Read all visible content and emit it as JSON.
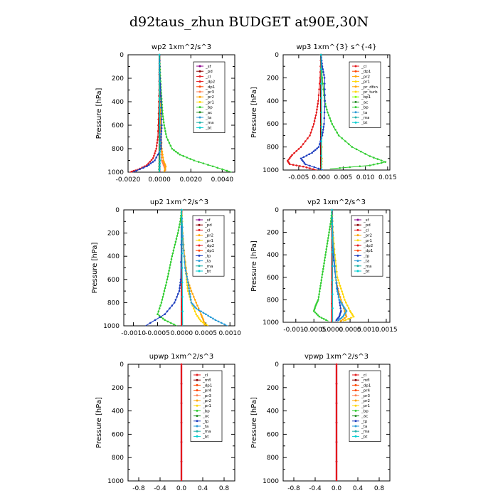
{
  "page": {
    "title": "d92taus_zhun  BUDGET at90E,30N"
  },
  "chart_data": [
    {
      "type": "line",
      "title": "wp2  1xm^2/s^3",
      "ylabel": "Pressure [hPa]",
      "ylim": [
        1000,
        0
      ],
      "xlim": [
        -0.002,
        0.0048
      ],
      "xticks": [
        "-0.0020",
        "0.0000",
        "0.0020",
        "0.0040"
      ],
      "xtick_values": [
        -0.002,
        0.0,
        0.002,
        0.004
      ],
      "yticks": [
        "0",
        "200",
        "400",
        "600",
        "800",
        "1000"
      ],
      "legend": [
        "_sf",
        "_pd",
        "_cl",
        "_dp2",
        "_dp1",
        "_pr3",
        "_pr2",
        "_pr1",
        "_bp",
        "_ac",
        "_ta",
        "_ma",
        "_bt"
      ],
      "series": [
        {
          "name": "_sf",
          "color": "#8B008B",
          "p": [
            0,
            1000
          ],
          "x": [
            0,
            0
          ]
        },
        {
          "name": "_pd",
          "color": "#8B0000",
          "p": [
            0,
            1000
          ],
          "x": [
            0,
            0
          ]
        },
        {
          "name": "_cl",
          "color": "#e41a1c",
          "p": [
            0,
            300,
            500,
            700,
            800,
            880,
            940,
            980,
            1000
          ],
          "x": [
            0,
            -2e-05,
            -5e-05,
            -0.0001,
            -0.0002,
            -0.0004,
            -0.0008,
            -0.0014,
            -0.0019
          ]
        },
        {
          "name": "_dp1",
          "color": "#ff7f50",
          "p": [
            0,
            300,
            600,
            800,
            900,
            950,
            990
          ],
          "x": [
            0,
            2e-05,
            5e-05,
            0.0001,
            0.00015,
            0.0003,
            0.0004
          ]
        },
        {
          "name": "_pr3",
          "color": "#ffa500",
          "p": [
            0,
            300,
            600,
            800,
            900,
            950,
            1000
          ],
          "x": [
            0,
            3e-05,
            8e-05,
            0.00015,
            0.00025,
            0.0004,
            0.0003
          ]
        },
        {
          "name": "_bp",
          "color": "#32cd32",
          "p": [
            0,
            100,
            200,
            300,
            400,
            500,
            600,
            700,
            800,
            850,
            900,
            950,
            1000
          ],
          "x": [
            0,
            3e-05,
            6e-05,
            0.0001,
            0.00015,
            0.0002,
            0.0003,
            0.00045,
            0.0008,
            0.0013,
            0.0022,
            0.0034,
            0.0046
          ]
        },
        {
          "name": "_ac",
          "color": "#228b22",
          "p": [
            0,
            500,
            900,
            1000
          ],
          "x": [
            0,
            0,
            0,
            -3e-05
          ]
        },
        {
          "name": "_ta",
          "color": "#1f3fbf",
          "p": [
            0,
            200,
            400,
            600,
            700,
            800,
            900,
            950,
            1000
          ],
          "x": [
            0,
            3e-05,
            0.0001,
            0.00015,
            0.0001,
            0.0001,
            -0.0003,
            -0.0008,
            -0.0017
          ]
        },
        {
          "name": "_bt",
          "color": "#00ced1",
          "p": [
            0,
            300,
            600,
            900,
            1000
          ],
          "x": [
            0,
            1e-05,
            2e-05,
            4e-05,
            1e-05
          ]
        }
      ]
    },
    {
      "type": "line",
      "title": "wp3  1xm^{3} s^{-4}",
      "ylabel": "Pressure [hPa]",
      "ylim": [
        1000,
        0
      ],
      "xlim": [
        -0.0085,
        0.0155
      ],
      "xticks": [
        "-0.005",
        "0.000",
        "0.005",
        "0.010",
        "0.015"
      ],
      "xtick_values": [
        -0.005,
        0.0,
        0.005,
        0.01,
        0.015
      ],
      "yticks": [
        "0",
        "200",
        "400",
        "600",
        "800",
        "1000"
      ],
      "legend": [
        "_cl",
        "_dp1",
        "_pr2",
        "_pr1",
        "_pr_dfsn",
        "_pr_turb",
        "_bp1",
        "_ac",
        "_bp",
        "_ta",
        "_ma",
        "_bt"
      ],
      "series": [
        {
          "name": "_cl",
          "color": "#8B008B",
          "p": [
            0,
            1000
          ],
          "x": [
            0,
            0
          ]
        },
        {
          "name": "_dp1",
          "color": "#8B0000",
          "p": [
            0,
            1000
          ],
          "x": [
            0,
            0
          ]
        },
        {
          "name": "_pr2",
          "color": "#e41a1c",
          "p": [
            0,
            200,
            400,
            500,
            600,
            700,
            800,
            870,
            920,
            950,
            970,
            1000
          ],
          "x": [
            0,
            -0.0002,
            -0.0006,
            -0.001,
            -0.0016,
            -0.0025,
            -0.0045,
            -0.0065,
            -0.0075,
            -0.007,
            -0.004,
            -0.001
          ]
        },
        {
          "name": "_pr_dfsn",
          "color": "#ffa500",
          "p": [
            0,
            500,
            900,
            1000
          ],
          "x": [
            0,
            0.0001,
            0.0002,
            0.0001
          ]
        },
        {
          "name": "_ac",
          "color": "#32cd32",
          "p": [
            0,
            200,
            400,
            500,
            600,
            700,
            800,
            880,
            930,
            960,
            990
          ],
          "x": [
            0,
            0.0003,
            0.0008,
            0.0015,
            0.0025,
            0.004,
            0.007,
            0.011,
            0.0145,
            0.011,
            0.002
          ]
        },
        {
          "name": "_ta",
          "color": "#1f3fbf",
          "p": [
            0,
            100,
            200,
            400,
            600,
            700,
            800,
            850,
            900,
            950,
            1000
          ],
          "x": [
            0,
            0.0003,
            0.0008,
            0.0009,
            0.0007,
            0.0003,
            -0.0005,
            -0.002,
            -0.0045,
            -0.0035,
            0.0005
          ]
        },
        {
          "name": "_bt",
          "color": "#00ced1",
          "p": [
            0,
            500,
            1000
          ],
          "x": [
            0,
            0.0001,
            0.0001
          ]
        }
      ]
    },
    {
      "type": "line",
      "title": "up2  1xm^2/s^3",
      "ylabel": "Pressure [hPa]",
      "ylim": [
        1000,
        0
      ],
      "xlim": [
        -0.0012,
        0.0011
      ],
      "xticks": [
        "-0.0010",
        "-0.0005",
        "0.0000",
        "0.0005",
        "0.0010"
      ],
      "xtick_values": [
        -0.001,
        -0.0005,
        0.0,
        0.0005,
        0.001
      ],
      "yticks": [
        "0",
        "200",
        "400",
        "600",
        "800",
        "1000"
      ],
      "legend": [
        "_sf",
        "_pd",
        "_cl",
        "_pr2",
        "_pr1",
        "_dp2",
        "_dp1",
        "_tp",
        "_ta",
        "_ma",
        "_bt"
      ],
      "series": [
        {
          "name": "_sf",
          "color": "#8B008B",
          "p": [
            0,
            1000
          ],
          "x": [
            0,
            0
          ]
        },
        {
          "name": "_pd",
          "color": "#8B0000",
          "p": [
            0,
            1000
          ],
          "x": [
            0,
            0
          ]
        },
        {
          "name": "_cl",
          "color": "#e41a1c",
          "p": [
            0,
            1000
          ],
          "x": [
            0,
            0
          ]
        },
        {
          "name": "_pr2",
          "color": "#ffa500",
          "p": [
            0,
            200,
            400,
            600,
            700,
            800,
            900,
            950,
            1000
          ],
          "x": [
            0,
            2e-05,
            6e-05,
            0.00012,
            0.0002,
            0.0003,
            0.0004,
            0.00045,
            0.00048
          ]
        },
        {
          "name": "_pr1",
          "color": "#ffd700",
          "p": [
            0,
            200,
            400,
            600,
            700,
            800,
            900,
            960,
            1000
          ],
          "x": [
            0,
            2e-05,
            5e-05,
            0.0001,
            0.00013,
            0.0002,
            0.0003,
            0.0004,
            0.00055
          ]
        },
        {
          "name": "_dp1",
          "color": "#32cd32",
          "p": [
            0,
            100,
            200,
            300,
            400,
            500,
            600,
            700,
            800,
            900,
            950,
            1000
          ],
          "x": [
            0,
            -3e-05,
            -8e-05,
            -0.00014,
            -0.0002,
            -0.00025,
            -0.0003,
            -0.00036,
            -0.00042,
            -0.0005,
            -0.00035,
            -0.0001
          ]
        },
        {
          "name": "_tp",
          "color": "#1f3fbf",
          "p": [
            0,
            600,
            700,
            800,
            900,
            1000
          ],
          "x": [
            0,
            -2e-05,
            -5e-05,
            -0.00015,
            -0.00035,
            -0.00075
          ]
        },
        {
          "name": "_ta",
          "color": "#2a9bd6",
          "p": [
            0,
            300,
            500,
            600,
            700,
            800,
            850,
            900,
            950,
            1000
          ],
          "x": [
            0,
            3e-05,
            7e-05,
            0.00012,
            0.00016,
            0.0002,
            0.0003,
            0.0005,
            0.0007,
            0.00095
          ]
        },
        {
          "name": "_bt",
          "color": "#00ced1",
          "p": [
            0,
            500,
            1000
          ],
          "x": [
            0,
            1e-05,
            2e-05
          ]
        }
      ]
    },
    {
      "type": "line",
      "title": "vp2  1xm^2/s^3",
      "ylabel": "Pressure [hPa]",
      "ylim": [
        1000,
        0
      ],
      "xlim": [
        -0.00135,
        0.0016
      ],
      "xticks": [
        "-0.0010",
        "-0.0005",
        "0.0000",
        "0.0005",
        "0.0010",
        "0.0015"
      ],
      "xtick_values": [
        -0.001,
        -0.0005,
        0.0,
        0.0005,
        0.001,
        0.0015
      ],
      "yticks": [
        "0",
        "200",
        "400",
        "600",
        "800",
        "1000"
      ],
      "legend": [
        "_sf",
        "_pd",
        "_cl",
        "_pr2",
        "_pr1",
        "_dp2",
        "_dp1",
        "_tp",
        "_ta",
        "_ma",
        "_bt"
      ],
      "series": [
        {
          "name": "_sf",
          "color": "#8B008B",
          "p": [
            0,
            1000
          ],
          "x": [
            0,
            0
          ]
        },
        {
          "name": "_pd",
          "color": "#8B0000",
          "p": [
            0,
            1000
          ],
          "x": [
            0,
            0
          ]
        },
        {
          "name": "_cl",
          "color": "#e41a1c",
          "p": [
            0,
            1000
          ],
          "x": [
            0,
            0
          ]
        },
        {
          "name": "_pr2",
          "color": "#ffa500",
          "p": [
            0,
            200,
            400,
            600,
            700,
            800,
            900,
            950,
            1000
          ],
          "x": [
            0,
            2e-05,
            5e-05,
            0.0001,
            0.00016,
            0.00025,
            0.00035,
            0.0004,
            0.0002
          ]
        },
        {
          "name": "_pr1",
          "color": "#ffd700",
          "p": [
            0,
            200,
            400,
            600,
            700,
            800,
            900,
            950,
            990
          ],
          "x": [
            0,
            3e-05,
            8e-05,
            0.00015,
            0.00025,
            0.00035,
            0.0005,
            0.0006,
            0.0003
          ]
        },
        {
          "name": "_dp1",
          "color": "#32cd32",
          "p": [
            0,
            100,
            200,
            300,
            400,
            500,
            600,
            700,
            800,
            850,
            900,
            950,
            990
          ],
          "x": [
            0,
            -3e-05,
            -8e-05,
            -0.00013,
            -0.00018,
            -0.00023,
            -0.00028,
            -0.00033,
            -0.00038,
            -0.00045,
            -0.0005,
            -0.00035,
            -0.0001
          ]
        },
        {
          "name": "_tp",
          "color": "#1f3fbf",
          "p": [
            0,
            400,
            600,
            800,
            900,
            950,
            990
          ],
          "x": [
            0,
            3e-05,
            0.0001,
            0.0002,
            0.00025,
            0.0002,
            0.0001
          ]
        },
        {
          "name": "_ta",
          "color": "#2a9bd6",
          "p": [
            0,
            300,
            500,
            700,
            800,
            850,
            900,
            950,
            990
          ],
          "x": [
            0,
            3e-05,
            8e-05,
            0.00013,
            0.0002,
            0.0003,
            0.0004,
            0.0003,
            0.00015
          ]
        },
        {
          "name": "_bt",
          "color": "#00ced1",
          "p": [
            0,
            500,
            1000
          ],
          "x": [
            0,
            1e-05,
            2e-05
          ]
        }
      ]
    },
    {
      "type": "line",
      "title": "upwp  1xm^2/s^3",
      "ylabel": "Pressure [hPa]",
      "ylim": [
        1000,
        0
      ],
      "xlim": [
        -1.0,
        1.0
      ],
      "xticks": [
        "-0.8",
        "-0.4",
        "0.0",
        "0.4",
        "0.8"
      ],
      "xtick_values": [
        -0.8,
        -0.4,
        0.0,
        0.4,
        0.8
      ],
      "yticks": [
        "0",
        "200",
        "400",
        "600",
        "800",
        "1000"
      ],
      "legend": [
        "_cl",
        "_mfl",
        "_dp1",
        "_pr4",
        "_pr3",
        "_pr2",
        "_pr1",
        "_bp",
        "_ac",
        "_tp",
        "_ta",
        "_ma",
        "_bt"
      ],
      "series": [
        {
          "name": "_cl",
          "color": "#8B008B",
          "p": [
            0,
            1000
          ],
          "x": [
            0,
            0
          ]
        },
        {
          "name": "_dp1",
          "color": "#e41a1c",
          "p": [
            0,
            1000
          ],
          "x": [
            0,
            0
          ]
        }
      ]
    },
    {
      "type": "line",
      "title": "vpwp  1xm^2/s^3",
      "ylabel": "Pressure [hPa]",
      "ylim": [
        1000,
        0
      ],
      "xlim": [
        -1.0,
        1.0
      ],
      "xticks": [
        "-0.8",
        "-0.4",
        "0.0",
        "0.4",
        "0.8"
      ],
      "xtick_values": [
        -0.8,
        -0.4,
        0.0,
        0.4,
        0.8
      ],
      "yticks": [
        "0",
        "200",
        "400",
        "600",
        "800",
        "1000"
      ],
      "legend": [
        "_cl",
        "_mfl",
        "_dp1",
        "_pr4",
        "_pr3",
        "_pr2",
        "_pr1",
        "_bp",
        "_ac",
        "_tp",
        "_ta",
        "_ma",
        "_bt"
      ],
      "series": [
        {
          "name": "_cl",
          "color": "#8B008B",
          "p": [
            0,
            1000
          ],
          "x": [
            0,
            0
          ]
        },
        {
          "name": "_dp1",
          "color": "#e41a1c",
          "p": [
            0,
            1000
          ],
          "x": [
            0,
            0
          ]
        }
      ]
    }
  ],
  "legend_colors": {
    "_sf": "#8B008B",
    "_pd": "#8B0000",
    "_cl": "#e41a1c",
    "_dp2": "#e41a1c",
    "_dp1": "#ff4500",
    "_pr4": "#ff4500",
    "_pr3": "#ff7f50",
    "_pr2": "#ffa500",
    "_pr1": "#ffd700",
    "_pr_dfsn": "#ffa500",
    "_pr_turb": "#ffd700",
    "_bp1": "#7cfc00",
    "_bp": "#32cd32",
    "_ac": "#228b22",
    "_tp": "#1f3fbf",
    "_ta": "#2a9bd6",
    "_ma": "#20b2aa",
    "_bt": "#00ced1",
    "_mfl": "#8B0000"
  }
}
